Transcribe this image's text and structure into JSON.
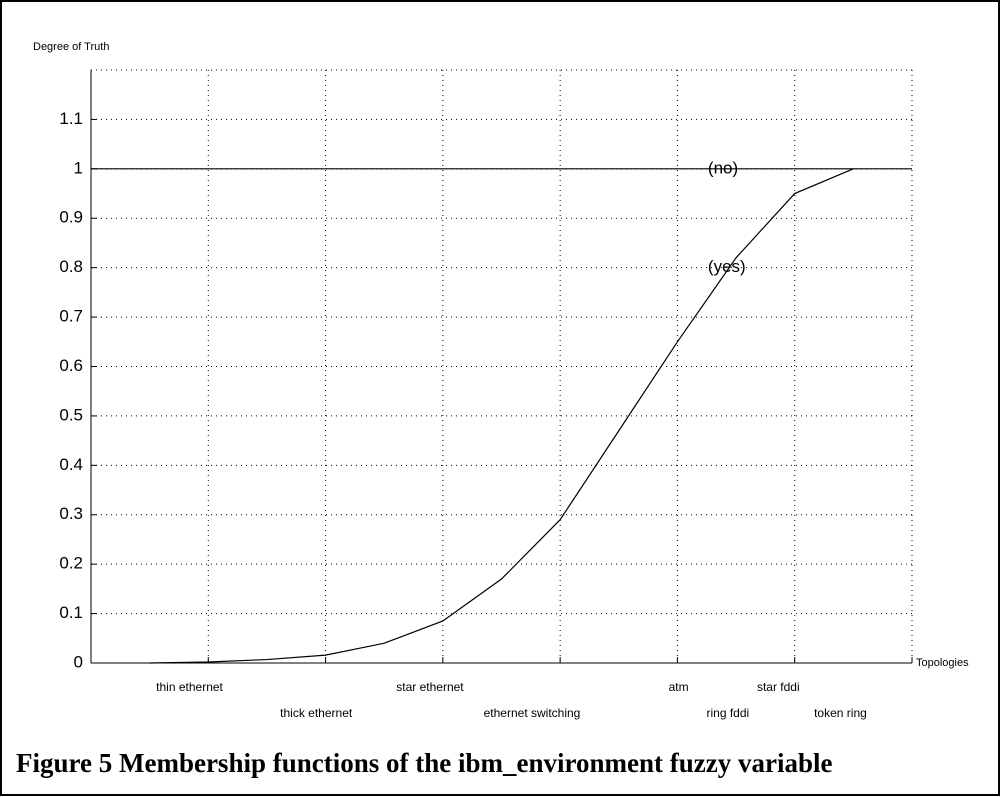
{
  "chart_data": {
    "type": "line",
    "caption": "Figure 5 Membership functions of the ibm_environment fuzzy variable",
    "y_label": "Degree of Truth",
    "x_label": "Topologies",
    "xlim": [
      0,
      7
    ],
    "xticks": [
      1,
      2,
      3,
      4,
      5,
      6,
      7
    ],
    "ylim": [
      0,
      1.2
    ],
    "yticks": [
      0,
      0.1,
      0.2,
      0.3,
      0.4,
      0.5,
      0.6,
      0.7,
      0.8,
      0.9,
      1,
      1.1
    ],
    "grid": true,
    "categories": [
      {
        "label": "thin ethernet",
        "x": 0.84
      },
      {
        "label": "thick ethernet",
        "x": 1.92
      },
      {
        "label": "star ethernet",
        "x": 2.89
      },
      {
        "label": "ethernet switching",
        "x": 3.76
      },
      {
        "label": "atm",
        "x": 5.01
      },
      {
        "label": "ring fddi",
        "x": 5.43
      },
      {
        "label": "star fddi",
        "x": 5.86
      },
      {
        "label": "token ring",
        "x": 6.39
      }
    ],
    "series": [
      {
        "name": "(no)",
        "color": "#000000",
        "x": [
          0,
          7
        ],
        "values": [
          1,
          1
        ]
      },
      {
        "name": "(yes)",
        "color": "#000000",
        "x": [
          0.5,
          1,
          1.5,
          2,
          2.5,
          3,
          3.5,
          4,
          4.5,
          5,
          5.5,
          6,
          6.5
        ],
        "values": [
          0,
          0.002,
          0.007,
          0.016,
          0.04,
          0.085,
          0.17,
          0.29,
          0.47,
          0.65,
          0.82,
          0.95,
          1
        ]
      }
    ],
    "annotations": [
      {
        "text": "(no)",
        "x": 5.26,
        "y": 1
      },
      {
        "text": "(yes)",
        "x": 5.26,
        "y": 0.8
      }
    ]
  }
}
